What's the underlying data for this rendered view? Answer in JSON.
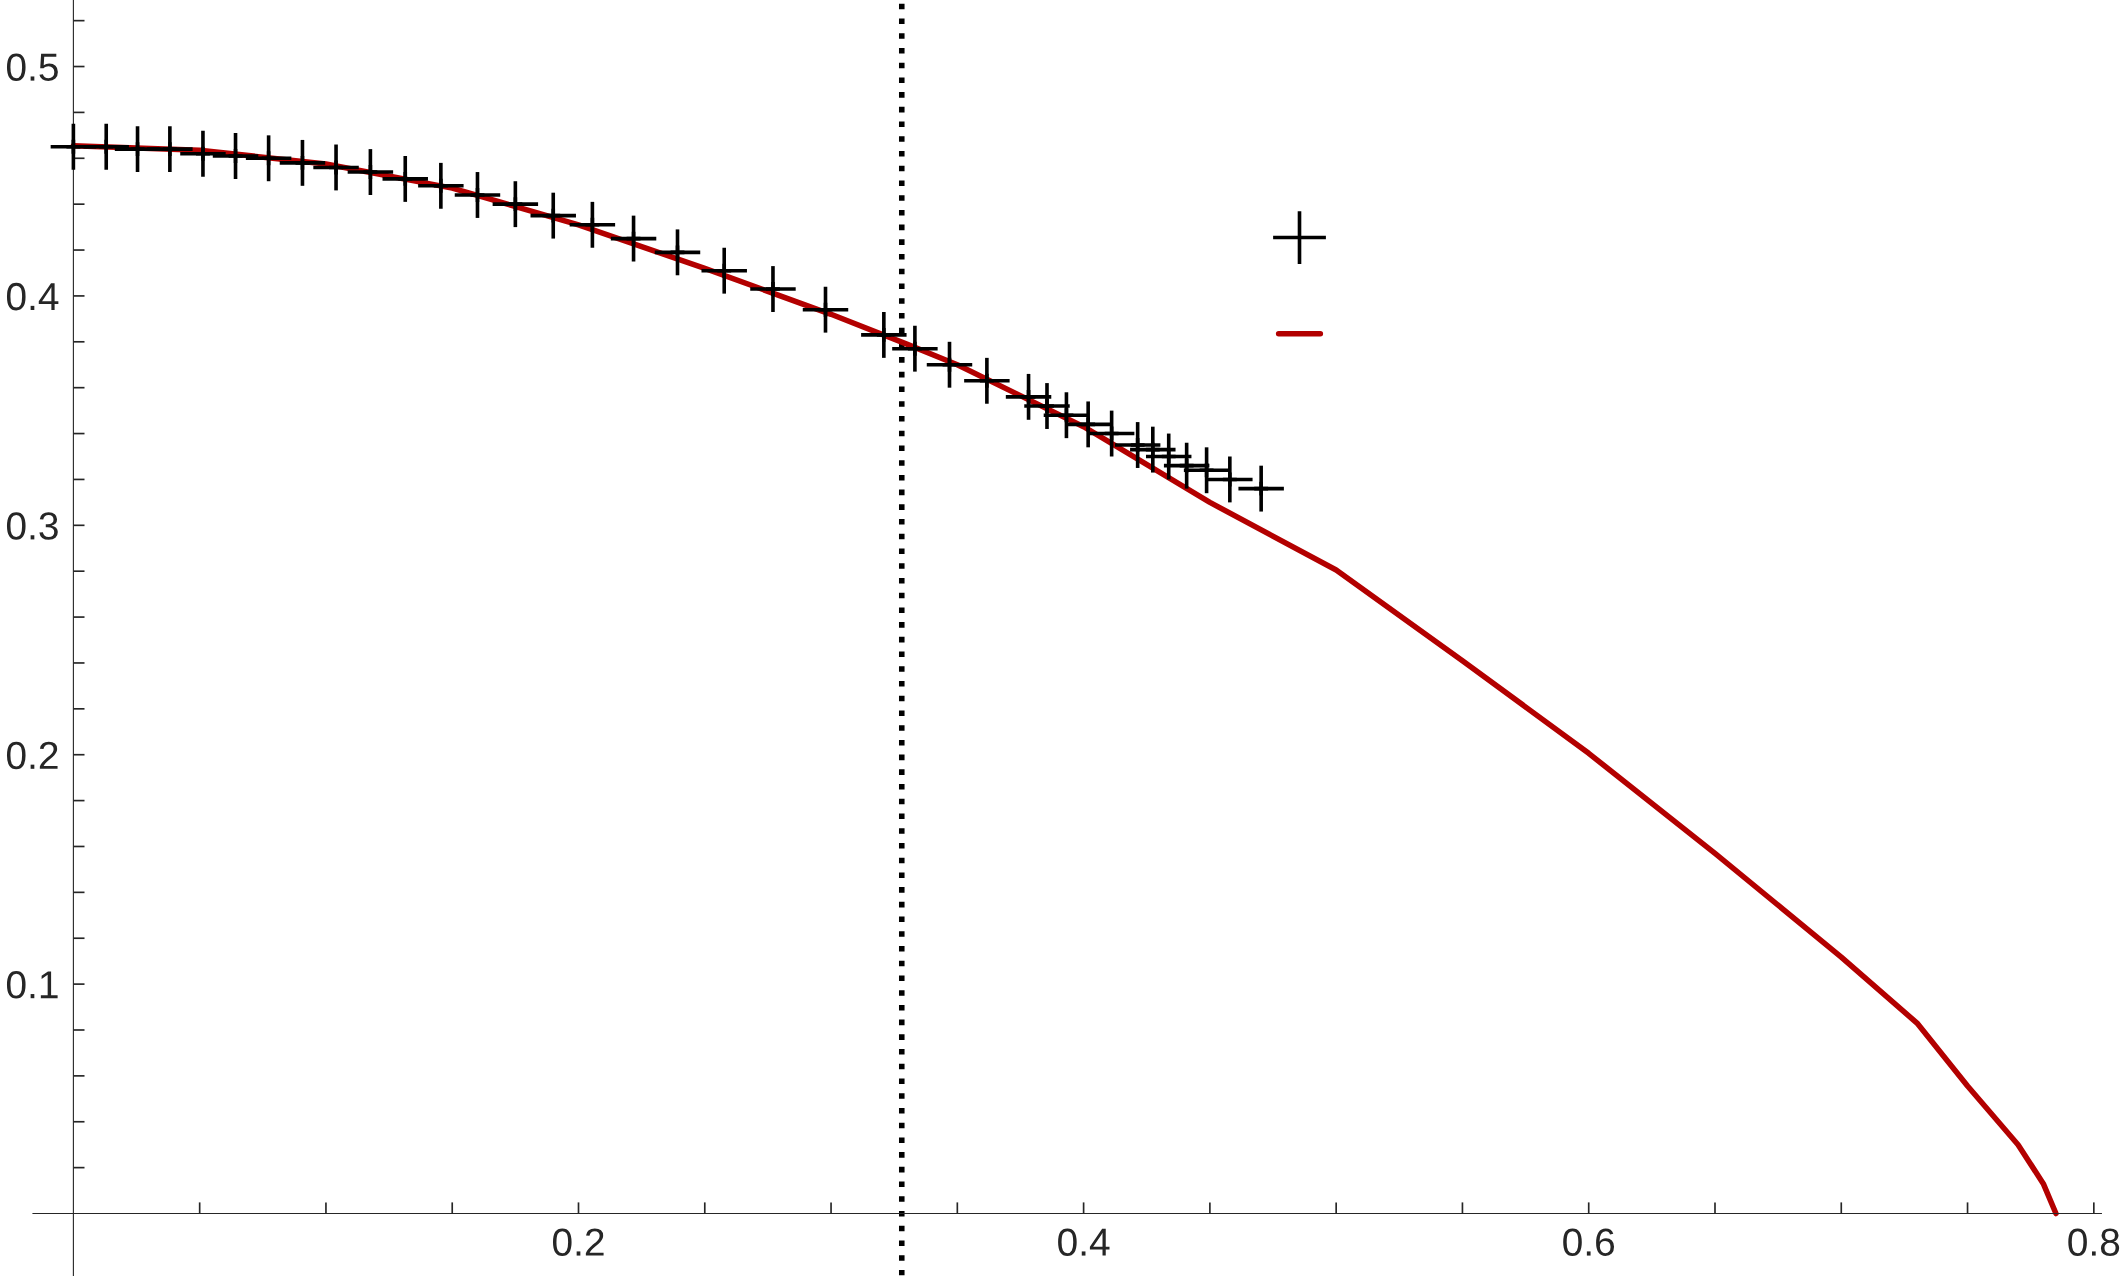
{
  "chart_data": {
    "type": "scatter",
    "xlim": [
      -0.016,
      0.803
    ],
    "ylim": [
      -0.027,
      0.529
    ],
    "xticks": [
      {
        "value": 0.05,
        "label": null
      },
      {
        "value": 0.1,
        "label": null
      },
      {
        "value": 0.15,
        "label": null
      },
      0.2,
      {
        "value": 0.25,
        "label": null
      },
      {
        "value": 0.3,
        "label": null
      },
      {
        "value": 0.35,
        "label": null
      },
      0.4,
      {
        "value": 0.45,
        "label": null
      },
      {
        "value": 0.5,
        "label": null
      },
      {
        "value": 0.55,
        "label": null
      },
      0.6,
      {
        "value": 0.65,
        "label": null
      },
      {
        "value": 0.7,
        "label": null
      },
      {
        "value": 0.75,
        "label": null
      },
      0.8
    ],
    "yticks": [
      {
        "value": 0.02,
        "label": null
      },
      {
        "value": 0.04,
        "label": null
      },
      {
        "value": 0.06,
        "label": null
      },
      {
        "value": 0.08,
        "label": null
      },
      0.1,
      {
        "value": 0.12,
        "label": null
      },
      {
        "value": 0.14,
        "label": null
      },
      {
        "value": 0.16,
        "label": null
      },
      {
        "value": 0.18,
        "label": null
      },
      0.2,
      {
        "value": 0.22,
        "label": null
      },
      {
        "value": 0.24,
        "label": null
      },
      {
        "value": 0.26,
        "label": null
      },
      {
        "value": 0.28,
        "label": null
      },
      0.3,
      {
        "value": 0.32,
        "label": null
      },
      {
        "value": 0.34,
        "label": null
      },
      {
        "value": 0.36,
        "label": null
      },
      {
        "value": 0.38,
        "label": null
      },
      0.4,
      {
        "value": 0.42,
        "label": null
      },
      {
        "value": 0.44,
        "label": null
      },
      {
        "value": 0.46,
        "label": null
      },
      {
        "value": 0.48,
        "label": null
      },
      0.5,
      {
        "value": 0.52,
        "label": null
      }
    ],
    "grid": false,
    "ref_lines": [
      {
        "axis": "x",
        "value": 0.328,
        "color": "#000000",
        "line_style": "dotted"
      }
    ],
    "series": [
      {
        "color": "#000000",
        "marker": "cross",
        "errors": [
          0.01,
          0.01,
          0.01,
          0.01,
          0.01,
          0.01,
          0.01,
          0.01,
          0.01,
          0.01,
          0.01,
          0.01,
          0.01,
          0.01,
          0.01,
          0.01,
          0.01,
          0.01,
          0.01,
          0.01,
          0.01,
          0.01,
          0.01,
          0.01,
          0.01,
          0.01,
          0.01,
          0.01,
          0.01,
          0.01,
          0.01,
          0.01,
          0.01,
          0.01,
          0.01,
          0.01,
          0.01
        ],
        "xerrors": [
          0.009,
          0.009,
          0.009,
          0.009,
          0.009,
          0.009,
          0.009,
          0.009,
          0.009,
          0.009,
          0.009,
          0.009,
          0.009,
          0.009,
          0.009,
          0.009,
          0.009,
          0.009,
          0.009,
          0.009,
          0.009,
          0.009,
          0.009,
          0.009,
          0.009,
          0.009,
          0.009,
          0.009,
          0.009,
          0.009,
          0.009,
          0.009,
          0.009,
          0.009,
          0.009,
          0.009,
          0.009
        ],
        "x": [
          0,
          0.013,
          0.0254,
          0.0382,
          0.0513,
          0.0642,
          0.0773,
          0.0907,
          0.104,
          0.1176,
          0.1314,
          0.1455,
          0.16,
          0.175,
          0.19,
          0.2055,
          0.2218,
          0.2392,
          0.2577,
          0.277,
          0.2978,
          0.3209,
          0.3332,
          0.3469,
          0.3617,
          0.3782,
          0.3855,
          0.3932,
          0.4018,
          0.4111,
          0.4214,
          0.4274,
          0.4337,
          0.4408,
          0.4487,
          0.4579,
          0.4703
        ],
        "values": [
          0.465,
          0.465,
          0.464,
          0.464,
          0.462,
          0.461,
          0.46,
          0.458,
          0.456,
          0.454,
          0.451,
          0.448,
          0.444,
          0.44,
          0.435,
          0.431,
          0.425,
          0.419,
          0.411,
          0.403,
          0.394,
          0.383,
          0.377,
          0.37,
          0.363,
          0.356,
          0.352,
          0.348,
          0.344,
          0.34,
          0.335,
          0.333,
          0.33,
          0.326,
          0.324,
          0.32,
          0.316
        ]
      },
      {
        "type": "line",
        "color": "#b30000",
        "line_style": "solid",
        "x": [
          0,
          0.05,
          0.1,
          0.15,
          0.2,
          0.25,
          0.3,
          0.33,
          0.35,
          0.4,
          0.45,
          0.5,
          0.55,
          0.6,
          0.65,
          0.7,
          0.73,
          0.75,
          0.77,
          0.78,
          0.785
        ],
        "values": [
          0.4655,
          0.4635,
          0.4575,
          0.447,
          0.431,
          0.412,
          0.392,
          0.379,
          0.37,
          0.343,
          0.31,
          0.2805,
          0.241,
          0.2006,
          0.157,
          0.1118,
          0.083,
          0.0556,
          0.03,
          0.013,
          0.0
        ]
      }
    ]
  }
}
